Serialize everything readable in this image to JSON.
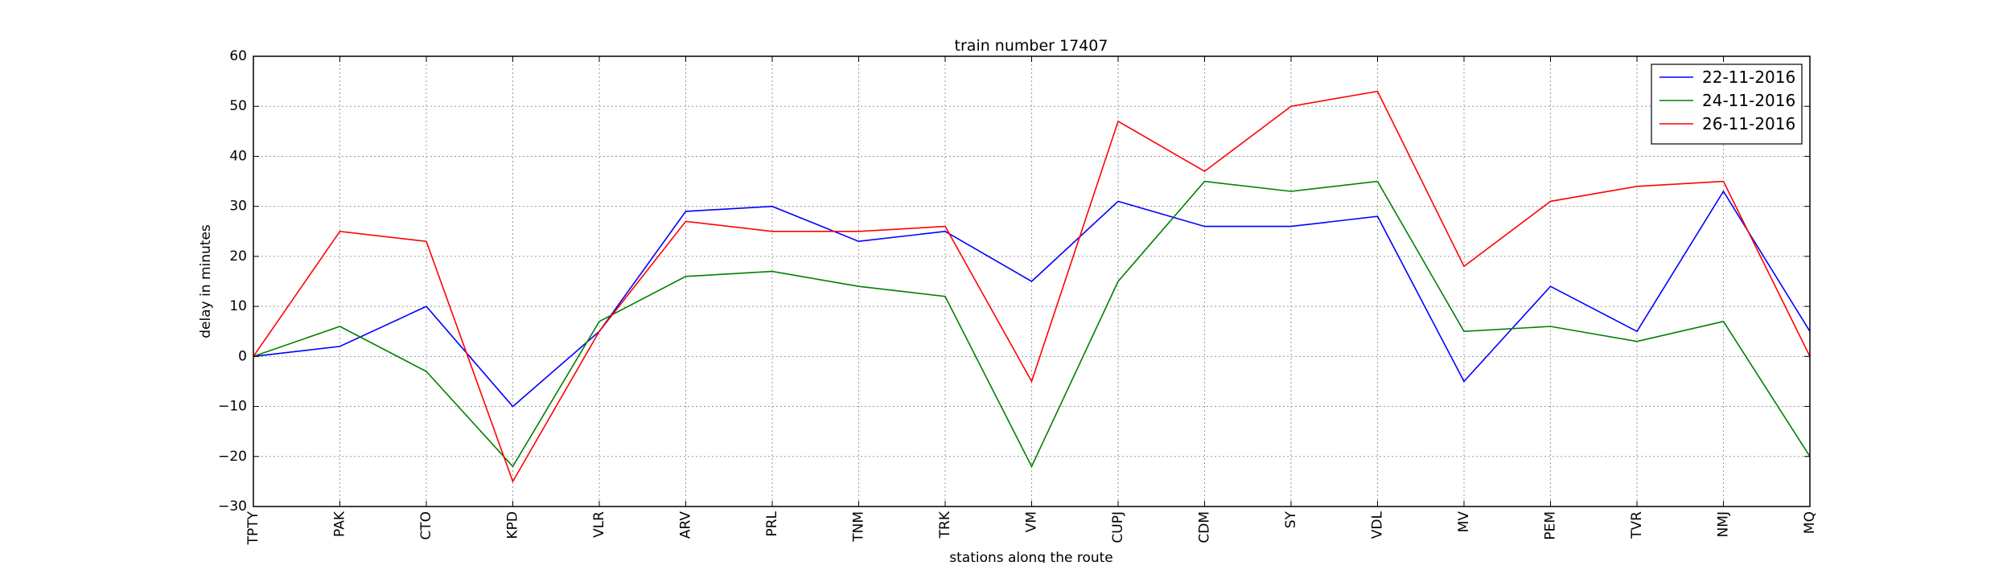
{
  "chart_data": {
    "type": "line",
    "title": "train number 17407",
    "xlabel": "stations along the route",
    "ylabel": "delay in minutes",
    "categories": [
      "TPTY",
      "PAK",
      "CTO",
      "KPD",
      "VLR",
      "ARV",
      "PRL",
      "TNM",
      "TRK",
      "VM",
      "CUPJ",
      "CDM",
      "SY",
      "VDL",
      "MV",
      "PEM",
      "TVR",
      "NMJ",
      "MQ"
    ],
    "ylim": [
      -30,
      60
    ],
    "yticks": [
      -30,
      -20,
      -10,
      0,
      10,
      20,
      30,
      40,
      50,
      60
    ],
    "grid": true,
    "legend_position": "top-right",
    "series": [
      {
        "name": "22-11-2016",
        "color": "#0000ff",
        "values": [
          0,
          2,
          10,
          -10,
          5,
          29,
          30,
          23,
          25,
          15,
          31,
          26,
          26,
          28,
          -5,
          14,
          5,
          33,
          5
        ]
      },
      {
        "name": "24-11-2016",
        "color": "#008000",
        "values": [
          0,
          6,
          -3,
          -22,
          7,
          16,
          17,
          14,
          12,
          -22,
          15,
          35,
          33,
          35,
          5,
          6,
          3,
          7,
          -20
        ]
      },
      {
        "name": "26-11-2016",
        "color": "#ff0000",
        "values": [
          0,
          25,
          23,
          -25,
          5,
          27,
          25,
          25,
          26,
          -5,
          47,
          37,
          50,
          53,
          18,
          31,
          34,
          35,
          0
        ]
      }
    ]
  }
}
